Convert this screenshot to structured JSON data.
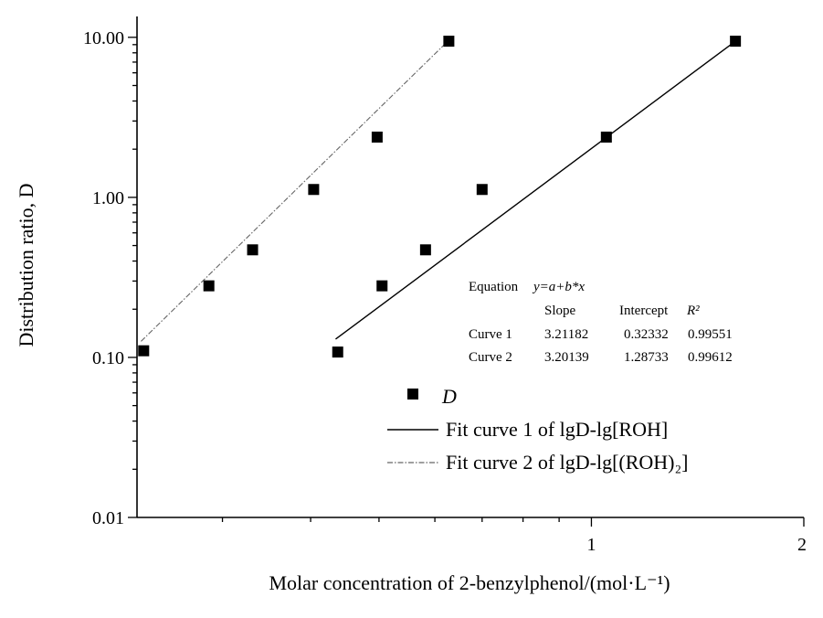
{
  "chart_data": {
    "type": "scatter",
    "title": "",
    "xlabel": "Molar concentration of 2-benzylphenol/(mol·L⁻¹)",
    "ylabel": "Distribution ratio, D",
    "xscale": "log",
    "yscale": "log",
    "xlim": [
      0.227,
      2.0
    ],
    "ylim": [
      0.01,
      13.5
    ],
    "x_tick_labels": [
      {
        "value": 1,
        "label": "1"
      },
      {
        "value": 2,
        "label": "2"
      }
    ],
    "y_tick_labels": [
      {
        "value": 0.01,
        "label": "0.01"
      },
      {
        "value": 0.1,
        "label": "0.10"
      },
      {
        "value": 1,
        "label": "1.00"
      },
      {
        "value": 10,
        "label": "10.00"
      }
    ],
    "grid": false,
    "series": [
      {
        "name": "D",
        "marker": "square",
        "points": [
          {
            "x": 0.232,
            "y": 0.11
          },
          {
            "x": 0.287,
            "y": 0.28
          },
          {
            "x": 0.331,
            "y": 0.47
          },
          {
            "x": 0.404,
            "y": 1.12
          },
          {
            "x": 0.497,
            "y": 2.38
          },
          {
            "x": 0.628,
            "y": 9.46
          },
          {
            "x": 0.437,
            "y": 0.108
          },
          {
            "x": 0.505,
            "y": 0.28
          },
          {
            "x": 0.582,
            "y": 0.47
          },
          {
            "x": 0.7,
            "y": 1.12
          },
          {
            "x": 1.05,
            "y": 2.38
          },
          {
            "x": 1.6,
            "y": 9.46
          }
        ]
      },
      {
        "name": "Fit curve 1 of lgD-lg[ROH]",
        "style": "solid",
        "x_range": [
          0.434,
          1.6
        ],
        "y_range": [
          0.13,
          9.46
        ]
      },
      {
        "name": "Fit curve 2 of lgD-lg[(ROH)₂]",
        "style": "dash-dot",
        "x_range": [
          0.23,
          0.626
        ],
        "y_range": [
          0.126,
          9.46
        ]
      }
    ],
    "fit_table": {
      "equation_label": "Equation",
      "equation": "y=a+b*x",
      "columns": [
        "Slope",
        "Intercept",
        "R²"
      ],
      "rows": [
        {
          "label": "Curve 1",
          "values": [
            "3.21182",
            "0.32332",
            "0.99551"
          ]
        },
        {
          "label": "Curve 2",
          "values": [
            "3.20139",
            "1.28733",
            "0.99612"
          ]
        }
      ]
    },
    "legend": {
      "placement": "bottom-right",
      "entries": [
        "D",
        "Fit curve 1 of lgD-lg[ROH]",
        "Fit curve 2 of lgD-lg[(ROH)₂]"
      ]
    }
  }
}
